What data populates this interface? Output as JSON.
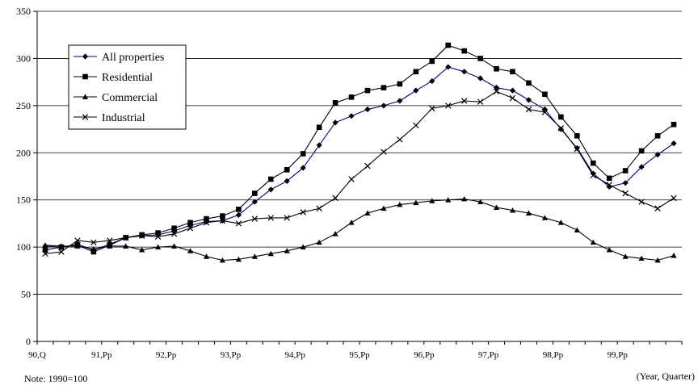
{
  "chart_data": {
    "type": "line",
    "title": "",
    "xlabel": "(Year, Quarter)",
    "ylabel": "",
    "ylim": [
      0,
      350
    ],
    "yticks": [
      0,
      50,
      100,
      150,
      200,
      250,
      300,
      350
    ],
    "grid": true,
    "legend_position": "top-left",
    "x_tick_labels": [
      "90,Q",
      "91,Pp",
      "92,Pp",
      "93,Pp",
      "94,Pp",
      "95,Pp",
      "96,Pp",
      "97,Pp",
      "98,Pp",
      "99,Pp"
    ],
    "quarters_per_tick": 4,
    "series": [
      {
        "name": "All properties",
        "marker": "diamond",
        "color": "#000080",
        "values": [
          101,
          100,
          103,
          97,
          103,
          110,
          112,
          113,
          117,
          123,
          127,
          128,
          134,
          148,
          161,
          170,
          184,
          208,
          232,
          239,
          246,
          250,
          255,
          266,
          276,
          291,
          286,
          279,
          269,
          266,
          256,
          246,
          225,
          205,
          178,
          164,
          168,
          185,
          198,
          210
        ]
      },
      {
        "name": "Residential",
        "marker": "square",
        "color": "#000000",
        "values": [
          97,
          100,
          102,
          95,
          102,
          110,
          113,
          115,
          120,
          126,
          130,
          133,
          140,
          157,
          172,
          182,
          199,
          227,
          253,
          259,
          266,
          269,
          273,
          286,
          297,
          314,
          308,
          300,
          289,
          286,
          274,
          262,
          238,
          218,
          189,
          173,
          181,
          202,
          218,
          230
        ]
      },
      {
        "name": "Commercial",
        "marker": "triangle",
        "color": "#000000",
        "values": [
          102,
          101,
          101,
          98,
          101,
          101,
          97,
          100,
          101,
          96,
          90,
          86,
          87,
          90,
          93,
          96,
          100,
          105,
          114,
          126,
          136,
          141,
          145,
          147,
          149,
          150,
          151,
          148,
          142,
          139,
          136,
          131,
          126,
          118,
          105,
          97,
          90,
          88,
          86,
          91
        ]
      },
      {
        "name": "Industrial",
        "marker": "x",
        "color": "#000000",
        "values": [
          93,
          95,
          107,
          105,
          107,
          110,
          112,
          111,
          114,
          120,
          126,
          128,
          125,
          130,
          131,
          131,
          137,
          141,
          152,
          172,
          186,
          201,
          214,
          229,
          247,
          250,
          255,
          254,
          265,
          258,
          246,
          243,
          226,
          204,
          176,
          166,
          157,
          148,
          141,
          152
        ]
      }
    ]
  },
  "note": "Note: 1990=100"
}
